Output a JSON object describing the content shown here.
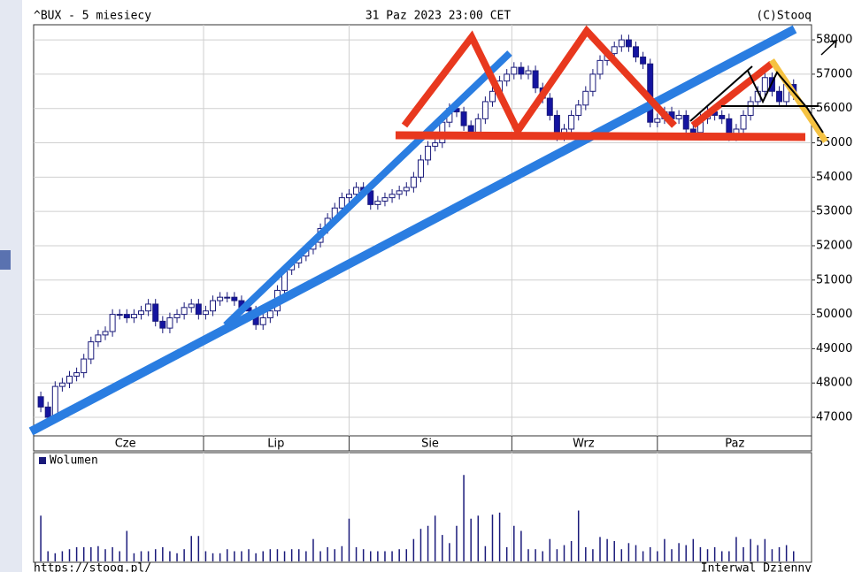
{
  "chart_data": {
    "type": "candlestick",
    "title": "^BUX - 5 miesiecy",
    "date": "31 Paz 2023 23:00 CET",
    "source": "(C)Stooq",
    "footer_left": "https://stooq.pl/",
    "footer_right": "Interwal Dzienny",
    "up_color": "#ffffff",
    "down_color": "#1414a0",
    "edge_color": "#1a1a7a",
    "open": [
      47600,
      47300,
      47000,
      47900,
      48000,
      48200,
      48300,
      48700,
      49200,
      49400,
      49500,
      50000,
      50000,
      49900,
      50000,
      50100,
      50300,
      49800,
      49600,
      49900,
      50000,
      50200,
      50300,
      50000,
      50100,
      50400,
      50500,
      50500,
      50400,
      50200,
      50100,
      49700,
      49900,
      50100,
      50700,
      51300,
      51500,
      51700,
      51900,
      52100,
      52500,
      52800,
      53100,
      53400,
      53500,
      53700,
      53600,
      53200,
      53300,
      53400,
      53500,
      53600,
      53700,
      54000,
      54500,
      54900,
      55000,
      55600,
      56000,
      55900,
      55500,
      55300,
      55700,
      56200,
      56500,
      56800,
      57000,
      57200,
      57000,
      57100,
      56600,
      56300,
      55800,
      55200,
      55400,
      55800,
      56100,
      56500,
      57000,
      57400,
      57600,
      57800,
      58000,
      57800,
      57500,
      57300,
      55600,
      55700,
      55900,
      55700,
      55800,
      55400,
      55300,
      55700,
      55900,
      55800,
      55700,
      55200,
      55400,
      55800,
      56200,
      56500,
      56900,
      56500,
      56200,
      56700
    ],
    "high": [
      47750,
      47450,
      48050,
      48150,
      48350,
      48450,
      48850,
      49350,
      49550,
      49650,
      50150,
      50150,
      50150,
      50150,
      50250,
      50450,
      50450,
      49950,
      50050,
      50150,
      50350,
      50450,
      50450,
      50250,
      50550,
      50650,
      50650,
      50650,
      50550,
      50350,
      50250,
      50050,
      50250,
      50850,
      51450,
      51650,
      51850,
      52050,
      52250,
      52650,
      52950,
      53250,
      53550,
      53650,
      53850,
      53850,
      53750,
      53450,
      53550,
      53650,
      53750,
      53850,
      54150,
      54650,
      55050,
      55150,
      55750,
      56150,
      56150,
      56050,
      55650,
      55850,
      56350,
      56650,
      56950,
      57150,
      57350,
      57350,
      57250,
      57250,
      56750,
      56450,
      55950,
      55550,
      55950,
      56250,
      56650,
      57150,
      57550,
      57750,
      57950,
      58150,
      58150,
      57950,
      57650,
      57450,
      55850,
      56050,
      56050,
      55950,
      55950,
      55550,
      55850,
      56050,
      56050,
      55950,
      55850,
      55550,
      55950,
      56350,
      56650,
      57050,
      57050,
      56650,
      56850,
      56850
    ],
    "low": [
      47150,
      46850,
      46850,
      47750,
      47850,
      48050,
      48150,
      48550,
      49050,
      49250,
      49350,
      49850,
      49750,
      49750,
      49850,
      49950,
      49650,
      49450,
      49450,
      49750,
      49850,
      50050,
      49850,
      49850,
      49950,
      50250,
      50350,
      50250,
      50050,
      49950,
      49550,
      49550,
      49750,
      49950,
      50550,
      51150,
      51350,
      51550,
      51750,
      51950,
      52350,
      52650,
      52950,
      53250,
      53350,
      53450,
      53050,
      53050,
      53150,
      53250,
      53350,
      53450,
      53550,
      53850,
      54350,
      54750,
      54850,
      55450,
      55750,
      55350,
      55150,
      55150,
      55550,
      56050,
      56350,
      56650,
      56850,
      56850,
      56850,
      56450,
      56150,
      55650,
      55050,
      55050,
      55250,
      55650,
      55950,
      56350,
      56850,
      57250,
      57450,
      57650,
      57650,
      57350,
      57150,
      55450,
      55450,
      55550,
      55550,
      55550,
      55250,
      55150,
      55150,
      55550,
      55650,
      55550,
      55050,
      55050,
      55250,
      55650,
      56050,
      56350,
      56350,
      56050,
      56050,
      56250
    ],
    "close": [
      47300,
      47000,
      47900,
      48000,
      48200,
      48300,
      48700,
      49200,
      49400,
      49500,
      50000,
      50000,
      49900,
      50000,
      50100,
      50300,
      49800,
      49600,
      49900,
      50000,
      50200,
      50300,
      50000,
      50100,
      50400,
      50500,
      50500,
      50400,
      50200,
      50100,
      49700,
      49900,
      50100,
      50700,
      51300,
      51500,
      51700,
      51900,
      52100,
      52500,
      52800,
      53100,
      53400,
      53500,
      53700,
      53600,
      53200,
      53300,
      53400,
      53500,
      53600,
      53700,
      54000,
      54500,
      54900,
      55000,
      55600,
      56000,
      55900,
      55500,
      55300,
      55700,
      56200,
      56500,
      56800,
      57000,
      57200,
      57000,
      57100,
      56600,
      56300,
      55800,
      55200,
      55400,
      55800,
      56100,
      56500,
      57000,
      57400,
      57600,
      57800,
      58000,
      57800,
      57500,
      57300,
      55600,
      55700,
      55900,
      55700,
      55800,
      55400,
      55300,
      55700,
      55900,
      55800,
      55700,
      55200,
      55400,
      55800,
      56200,
      56500,
      56900,
      56500,
      56200,
      56700,
      56400
    ],
    "xlim": [
      -1,
      107.5
    ],
    "xticks": [
      {
        "value": 11.8,
        "label": "Cze"
      },
      {
        "value": 32.8,
        "label": "Lip"
      },
      {
        "value": 54.3,
        "label": "Sie"
      },
      {
        "value": 75.7,
        "label": "Wrz"
      },
      {
        "value": 96.8,
        "label": "Paz"
      }
    ],
    "xgrid": [
      22.7,
      43,
      65.7,
      86
    ],
    "ylim": [
      46460,
      58440
    ],
    "yticks": [
      47000,
      48000,
      49000,
      50000,
      51000,
      52000,
      53000,
      54000,
      55000,
      56000,
      57000,
      58000
    ],
    "grid": true,
    "volume_name": "Wolumen",
    "volume_color": "#1a1a7a",
    "volume_lim": [
      0,
      100
    ],
    "volume": [
      45,
      10,
      8,
      10,
      12,
      14,
      14,
      14,
      15,
      12,
      14,
      10,
      30,
      8,
      10,
      10,
      12,
      14,
      10,
      8,
      12,
      25,
      25,
      10,
      8,
      8,
      12,
      10,
      10,
      12,
      8,
      10,
      12,
      12,
      10,
      12,
      12,
      10,
      22,
      10,
      14,
      12,
      15,
      42,
      14,
      12,
      10,
      10,
      10,
      10,
      12,
      12,
      22,
      32,
      35,
      45,
      26,
      18,
      35,
      85,
      42,
      45,
      15,
      46,
      48,
      14,
      35,
      30,
      12,
      12,
      10,
      22,
      12,
      16,
      20,
      50,
      14,
      12,
      24,
      22,
      20,
      12,
      18,
      16,
      10,
      14,
      10,
      22,
      12,
      18,
      16,
      22,
      14,
      12,
      14,
      10,
      10,
      24,
      14,
      22,
      16,
      22,
      12,
      14,
      16,
      10
    ]
  }
}
